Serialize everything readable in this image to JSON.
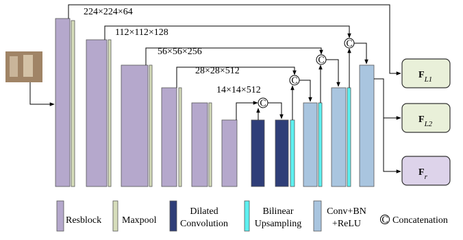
{
  "dimension_labels": [
    "224×224×64",
    "112×112×128",
    "56×56×256",
    "28×28×512",
    "14×14×512"
  ],
  "concat_symbol": "C",
  "outputs": [
    {
      "symbol": "F",
      "subscript": "L1"
    },
    {
      "symbol": "F",
      "subscript": "L2"
    },
    {
      "symbol": "F",
      "subscript": "r"
    }
  ],
  "legend": [
    {
      "lines": [
        "Resblock"
      ]
    },
    {
      "lines": [
        "Maxpool"
      ]
    },
    {
      "lines": [
        "Dilated",
        "Convolution"
      ]
    },
    {
      "lines": [
        "Bilinear",
        "Upsampling"
      ]
    },
    {
      "lines": [
        "Conv+BN",
        "+ReLU"
      ]
    },
    {
      "symbol": "C",
      "lines": [
        "Concatenation"
      ]
    }
  ]
}
